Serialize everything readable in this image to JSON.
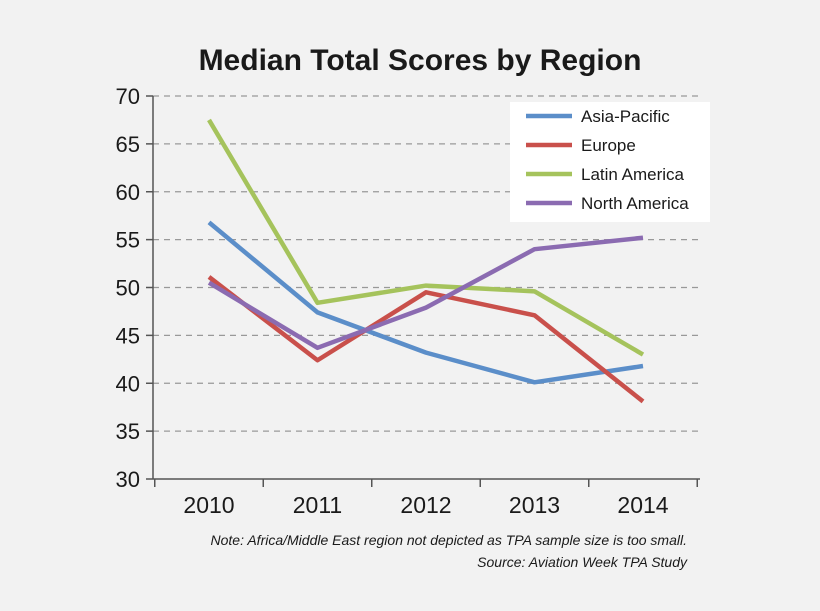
{
  "chart_data": {
    "type": "line",
    "title": "Median Total Scores by Region",
    "xlabel": "",
    "ylabel": "",
    "categories": [
      "2010",
      "2011",
      "2012",
      "2013",
      "2014"
    ],
    "ylim": [
      30,
      70
    ],
    "yticks": [
      30,
      35,
      40,
      45,
      50,
      55,
      60,
      65,
      70
    ],
    "grid": true,
    "legend_position": "top-right",
    "series": [
      {
        "name": "Asia-Pacific",
        "color": "#5b8ec9",
        "values": [
          56.8,
          47.4,
          43.2,
          40.1,
          41.8
        ]
      },
      {
        "name": "Europe",
        "color": "#c9504b",
        "values": [
          51.1,
          42.4,
          49.5,
          47.1,
          38.1
        ]
      },
      {
        "name": "Latin America",
        "color": "#a5c35c",
        "values": [
          67.5,
          48.4,
          50.2,
          49.6,
          43.0
        ]
      },
      {
        "name": "North America",
        "color": "#8b6bb1",
        "values": [
          50.5,
          43.7,
          47.9,
          54.0,
          55.2
        ]
      }
    ],
    "note": "Note: Africa/Middle East region not depicted as TPA sample size is too small.",
    "source": "Source: Aviation Week TPA Study"
  },
  "colors": {
    "background": "#f2f2f2",
    "plot_background": "#f2f2f2",
    "axis": "#555555",
    "grid": "#999999",
    "legend_background": "#ffffff"
  }
}
